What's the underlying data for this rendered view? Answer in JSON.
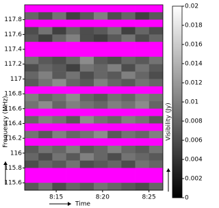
{
  "chart_data": {
    "type": "heatmap",
    "xlabel": "Time",
    "ylabel": "Frequency (MHz)",
    "xlim": [
      491.6,
      506.5
    ],
    "xticks": [
      {
        "value": 495,
        "label": "8:15"
      },
      {
        "value": 500,
        "label": "8:20"
      },
      {
        "value": 505,
        "label": "8:25"
      }
    ],
    "ylim": [
      115.5,
      118.0
    ],
    "yticks": [
      117.8,
      117.6,
      117.4,
      117.2,
      117,
      116.8,
      116.6,
      116.4,
      116.2,
      116,
      115.8,
      115.6
    ],
    "colormap": "gray",
    "flagged_color": "#ff00ff",
    "values": [
      [
        null,
        null,
        null,
        null,
        null,
        null,
        null,
        null,
        null,
        null
      ],
      [
        0.008,
        0.006,
        0.009,
        0.005,
        0.007,
        0.01,
        0.006,
        0.008,
        0.005,
        0.007
      ],
      [
        null,
        null,
        null,
        null,
        null,
        null,
        null,
        null,
        null,
        null
      ],
      [
        0.006,
        0.009,
        0.005,
        0.008,
        0.006,
        0.007,
        0.009,
        0.005,
        0.008,
        0.006
      ],
      [
        0.007,
        0.005,
        0.008,
        0.01,
        0.006,
        0.005,
        0.007,
        0.009,
        0.006,
        0.008
      ],
      [
        null,
        null,
        null,
        null,
        null,
        null,
        null,
        null,
        null,
        null
      ],
      [
        null,
        null,
        null,
        null,
        null,
        null,
        null,
        null,
        null,
        null
      ],
      [
        0.009,
        0.007,
        0.006,
        0.008,
        0.011,
        0.007,
        0.006,
        0.008,
        0.007,
        0.009
      ],
      [
        0.006,
        0.008,
        0.007,
        0.005,
        0.009,
        0.008,
        0.01,
        0.006,
        0.009,
        0.007
      ],
      [
        0.008,
        0.01,
        0.007,
        0.009,
        0.006,
        0.008,
        0.007,
        0.01,
        0.008,
        0.006
      ],
      [
        0.007,
        0.009,
        0.011,
        0.008,
        0.007,
        0.01,
        0.008,
        0.007,
        0.009,
        0.008
      ],
      [
        null,
        null,
        null,
        null,
        null,
        null,
        null,
        null,
        null,
        null
      ],
      [
        0.01,
        0.008,
        0.009,
        0.011,
        0.008,
        0.007,
        0.009,
        0.008,
        0.01,
        0.009
      ],
      [
        0.009,
        0.011,
        0.008,
        0.01,
        0.009,
        0.008,
        0.01,
        0.009,
        0.011,
        0.008
      ],
      [
        null,
        null,
        null,
        null,
        null,
        null,
        null,
        null,
        null,
        null
      ],
      [
        0.008,
        0.01,
        0.009,
        0.007,
        0.011,
        0.009,
        0.008,
        0.01,
        0.009,
        0.007
      ],
      [
        null,
        null,
        null,
        null,
        null,
        null,
        null,
        null,
        null,
        null
      ],
      [
        0.009,
        0.007,
        0.01,
        0.008,
        0.009,
        0.011,
        0.007,
        0.009,
        0.008,
        0.01
      ],
      [
        null,
        null,
        null,
        null,
        null,
        null,
        null,
        null,
        null,
        null
      ],
      [
        0.007,
        0.009,
        0.008,
        0.01,
        0.007,
        0.008,
        0.01,
        0.008,
        0.007,
        0.009
      ],
      [
        0.008,
        0.006,
        0.009,
        0.007,
        0.01,
        0.008,
        0.006,
        0.009,
        0.008,
        0.007
      ],
      [
        0.006,
        0.008,
        0.007,
        0.009,
        0.006,
        0.007,
        0.008,
        0.006,
        0.009,
        0.008
      ],
      [
        null,
        null,
        null,
        null,
        null,
        null,
        null,
        null,
        null,
        null
      ],
      [
        null,
        null,
        null,
        null,
        null,
        null,
        null,
        null,
        null,
        null
      ],
      [
        0.007,
        0.009,
        0.006,
        0.008,
        0.007,
        0.009,
        0.008,
        0.007,
        0.006,
        0.008
      ]
    ],
    "colorbar": {
      "label": "Visibility (Jy)",
      "lim": [
        0,
        0.02
      ],
      "ticks": [
        0,
        0.002,
        0.004,
        0.006,
        0.008,
        0.01,
        0.012,
        0.014,
        0.016,
        0.018,
        0.02
      ]
    }
  }
}
